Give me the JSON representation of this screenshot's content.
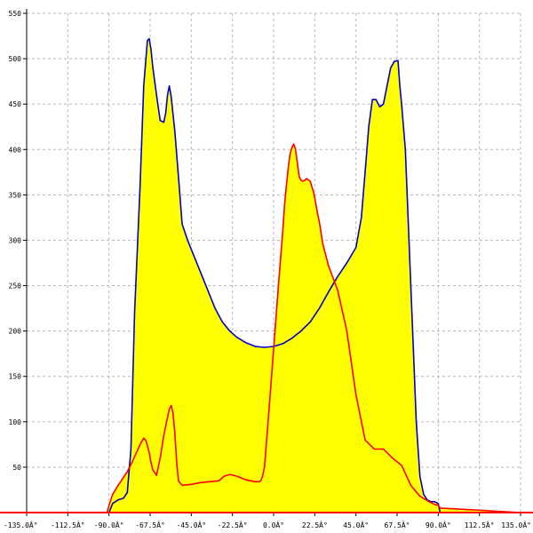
{
  "chart_data": {
    "type": "area",
    "title": "",
    "xlabel": "",
    "ylabel": "",
    "xlim": [
      -135,
      135
    ],
    "ylim": [
      0,
      550
    ],
    "grid": true,
    "x_ticks": [
      -135,
      -112.5,
      -90,
      -67.5,
      -45,
      -22.5,
      0,
      22.5,
      45,
      67.5,
      90,
      112.5,
      135
    ],
    "x_tick_labels": [
      "-135.0Â°",
      "-112.5Â°",
      "-90.0Â°",
      "-67.5Â°",
      "-45.0Â°",
      "-22.5Â°",
      "0.0Â°",
      "22.5Â°",
      "45.0Â°",
      "67.5Â°",
      "90.0Â°",
      "112.5Â°",
      "135.0Â°"
    ],
    "y_ticks": [
      50,
      100,
      150,
      200,
      250,
      300,
      350,
      400,
      450,
      500,
      550
    ],
    "y_tick_labels": [
      "50",
      "100",
      "150",
      "200",
      "250",
      "300",
      "350",
      "400",
      "450",
      "500",
      "550"
    ],
    "fill_color": "#ffff00",
    "series": [
      {
        "color": "#0000cc",
        "x": [
          -135,
          -90,
          -88,
          -85,
          -82,
          -80,
          -78,
          -76,
          -73,
          -71,
          -69,
          -68,
          -67,
          -66,
          -64,
          -62,
          -60,
          -59,
          -58,
          -57,
          -56,
          -54,
          -52,
          -50,
          -47,
          -44,
          -40,
          -36,
          -32,
          -28,
          -24,
          -20,
          -15,
          -10,
          -5,
          0,
          5,
          10,
          15,
          20,
          25,
          30,
          35,
          40,
          45,
          48,
          50,
          52,
          54,
          56,
          58,
          60,
          62,
          64,
          66,
          68,
          69,
          70,
          72,
          74,
          76,
          78,
          80,
          82,
          84,
          86,
          88,
          90,
          91,
          135
        ],
        "y": [
          0,
          0,
          10,
          14,
          16,
          22,
          70,
          220,
          360,
          470,
          520,
          522,
          510,
          490,
          460,
          432,
          430,
          440,
          460,
          470,
          458,
          420,
          370,
          318,
          300,
          285,
          265,
          245,
          225,
          210,
          200,
          193,
          187,
          183,
          182,
          183,
          186,
          192,
          200,
          210,
          225,
          243,
          260,
          275,
          292,
          325,
          375,
          425,
          455,
          455,
          447,
          450,
          470,
          490,
          497,
          498,
          470,
          450,
          400,
          300,
          200,
          100,
          40,
          20,
          14,
          12,
          12,
          10,
          0,
          0
        ]
      },
      {
        "color": "#ff0000",
        "x": [
          -135,
          -91,
          -90,
          -88,
          -85,
          -80,
          -77,
          -75,
          -73,
          -71,
          -70,
          -69,
          -68,
          -67,
          -66,
          -64,
          -62,
          -60,
          -58,
          -57,
          -56,
          -55,
          -54,
          -53,
          -52,
          -50,
          -45,
          -40,
          -35,
          -30,
          -27,
          -24,
          -20,
          -15,
          -10,
          -8,
          -7,
          -6,
          -5,
          -3,
          0,
          3,
          5,
          6,
          7,
          8,
          9,
          10,
          11,
          12,
          13,
          14,
          15,
          16,
          17,
          18,
          20,
          22,
          24,
          25,
          27,
          30,
          35,
          40,
          45,
          50,
          55,
          60,
          65,
          70,
          75,
          80,
          85,
          88,
          90,
          91,
          135
        ],
        "y": [
          0,
          0,
          8,
          20,
          30,
          45,
          57,
          66,
          75,
          82,
          80,
          74,
          66,
          55,
          47,
          41,
          60,
          85,
          105,
          114,
          118,
          110,
          88,
          55,
          35,
          30,
          31,
          33,
          34,
          35,
          40,
          42,
          40,
          36,
          34,
          34,
          35,
          40,
          50,
          100,
          180,
          260,
          310,
          340,
          360,
          380,
          395,
          402,
          406,
          400,
          385,
          370,
          366,
          365,
          366,
          368,
          365,
          352,
          330,
          320,
          295,
          272,
          245,
          200,
          130,
          80,
          70,
          70,
          60,
          52,
          30,
          18,
          12,
          9,
          8,
          5,
          0
        ]
      }
    ]
  }
}
